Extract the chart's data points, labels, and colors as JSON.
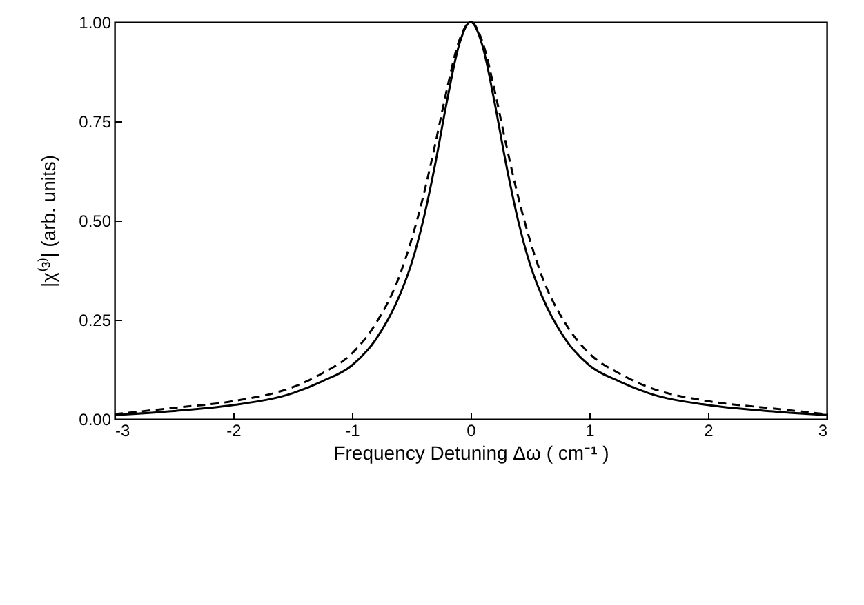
{
  "chart_data": {
    "type": "line",
    "xlabel": "Frequency Detuning Δω  ( cm⁻¹ )",
    "ylabel": "|χ⁽³⁾|   (arb. units)",
    "x": [
      -3,
      -2.5,
      -2,
      -1.5,
      -1.25,
      -1,
      -0.8,
      -0.6,
      -0.5,
      -0.4,
      -0.3,
      -0.2,
      -0.1,
      0,
      0.1,
      0.2,
      0.3,
      0.4,
      0.5,
      0.6,
      0.8,
      1,
      1.25,
      1.5,
      2,
      2.5,
      3
    ],
    "series": [
      {
        "color": "#000000",
        "line_style": "solid",
        "values": [
          0.01,
          0.02,
          0.035,
          0.065,
          0.095,
          0.135,
          0.2,
          0.31,
          0.39,
          0.5,
          0.64,
          0.8,
          0.94,
          1,
          0.94,
          0.8,
          0.64,
          0.5,
          0.39,
          0.31,
          0.2,
          0.135,
          0.095,
          0.065,
          0.035,
          0.02,
          0.01
        ]
      },
      {
        "color": "#000000",
        "line_style": "dashed",
        "values": [
          0.012,
          0.028,
          0.045,
          0.08,
          0.115,
          0.165,
          0.24,
          0.36,
          0.45,
          0.56,
          0.69,
          0.83,
          0.95,
          1,
          0.95,
          0.83,
          0.69,
          0.56,
          0.45,
          0.36,
          0.24,
          0.165,
          0.115,
          0.08,
          0.045,
          0.028,
          0.012
        ]
      }
    ],
    "xlim": [
      -3,
      3
    ],
    "xticks": [
      -3,
      -2,
      -1,
      0,
      1,
      2,
      3
    ],
    "ylim": [
      0,
      1
    ],
    "yticks": [
      {
        "value": 0,
        "label": "0.00"
      },
      {
        "value": 0.25,
        "label": "0.25"
      },
      {
        "value": 0.5,
        "label": "0.50"
      },
      {
        "value": 0.75,
        "label": "0.75"
      },
      {
        "value": 1,
        "label": "1.00"
      }
    ],
    "grid": false,
    "marker": "none"
  }
}
